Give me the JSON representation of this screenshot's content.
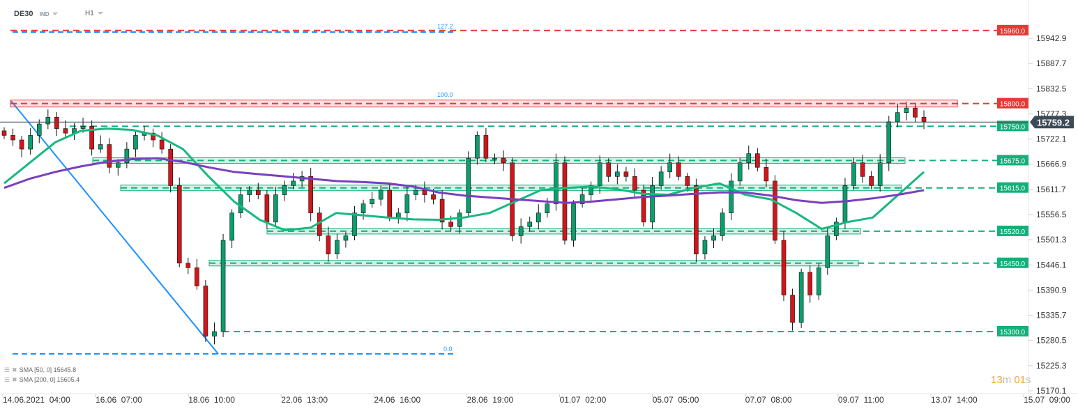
{
  "header": {
    "symbol": "DE30",
    "type": "IND",
    "timeframe": "H1"
  },
  "legend": [
    {
      "label": "SMA [50, 0] 15645.8"
    },
    {
      "label": "SMA [200, 0] 15605.4"
    }
  ],
  "timer": {
    "minutes": "13",
    "m": "m",
    "seconds": "01",
    "s": "s"
  },
  "colors": {
    "up": "#0a9e6e",
    "down": "#d0161b",
    "sma50": "#18b87f",
    "sma200": "#7a3fbf",
    "fib": "#1e90ff",
    "resistance": "#e53935",
    "support": "#14b07a",
    "current": "#3d4b58"
  },
  "chart_data": {
    "type": "candlestick",
    "instrument": "DE30",
    "timeframe": "H1",
    "ylim": [
      15150,
      15985
    ],
    "y_ticks": [
      15942.9,
      15887.7,
      15832.5,
      15777.3,
      15722.1,
      15666.9,
      15611.7,
      15556.5,
      15501.3,
      15446.1,
      15390.9,
      15335.7,
      15280.5,
      15225.3,
      15170.1
    ],
    "x_ticks": [
      "14.06.2021  04:00",
      "16.06  07:00",
      "18.06  10:00",
      "22.06  13:00",
      "24.06  16:00",
      "28.06  19:00",
      "01.07  02:00",
      "05.07  05:00",
      "07.07  08:00",
      "09.07  11:00",
      "13.07  14:00",
      "15.07  09:00"
    ],
    "closes": [
      15730,
      15720,
      15700,
      15730,
      15755,
      15770,
      15745,
      15735,
      15745,
      15750,
      15700,
      15710,
      15660,
      15670,
      15700,
      15730,
      15735,
      15720,
      15700,
      15620,
      15450,
      15440,
      15400,
      15290,
      15300,
      15500,
      15560,
      15600,
      15610,
      15600,
      15540,
      15600,
      15620,
      15630,
      15640,
      15560,
      15510,
      15470,
      15500,
      15510,
      15560,
      15580,
      15590,
      15610,
      15550,
      15560,
      15600,
      15610,
      15600,
      15590,
      15540,
      15530,
      15560,
      15680,
      15730,
      15680,
      15680,
      15670,
      15510,
      15530,
      15540,
      15560,
      15580,
      15670,
      15500,
      15580,
      15600,
      15620,
      15670,
      15640,
      15650,
      15640,
      15610,
      15540,
      15620,
      15650,
      15670,
      15640,
      15620,
      15470,
      15500,
      15510,
      15560,
      15630,
      15670,
      15690,
      15660,
      15630,
      15500,
      15380,
      15320,
      15430,
      15380,
      15440,
      15510,
      15540,
      15620,
      15670,
      15640,
      15620,
      15670,
      15760,
      15780,
      15790,
      15770,
      15760
    ],
    "series": [
      {
        "name": "SMA [50, 0]",
        "last": 15645.8,
        "values": [
          15625,
          15670,
          15715,
          15740,
          15745,
          15742,
          15730,
          15700,
          15640,
          15585,
          15545,
          15522,
          15528,
          15560,
          15555,
          15550,
          15546,
          15545,
          15550,
          15560,
          15585,
          15610,
          15615,
          15618,
          15612,
          15602,
          15600,
          15615,
          15625,
          15600,
          15590,
          15560,
          15525,
          15540,
          15550,
          15600,
          15650
        ]
      },
      {
        "name": "SMA [200, 0]",
        "last": 15605.4,
        "values": [
          15615,
          15635,
          15650,
          15662,
          15672,
          15678,
          15680,
          15672,
          15660,
          15650,
          15645,
          15640,
          15635,
          15630,
          15628,
          15625,
          15618,
          15605,
          15598,
          15594,
          15590,
          15586,
          15582,
          15585,
          15590,
          15595,
          15598,
          15602,
          15605,
          15605,
          15598,
          15588,
          15582,
          15586,
          15592,
          15600,
          15610
        ]
      }
    ],
    "levels": [
      {
        "value": 15960.0,
        "label": "15960.0",
        "kind": "resistance"
      },
      {
        "value": 15800.0,
        "label": "15800.0",
        "kind": "resistance"
      },
      {
        "value": 15750.0,
        "label": "15750.0",
        "kind": "support"
      },
      {
        "value": 15675.0,
        "label": "15675.0",
        "kind": "support"
      },
      {
        "value": 15615.0,
        "label": "15615.0",
        "kind": "support"
      },
      {
        "value": 15520.0,
        "label": "15520.0",
        "kind": "support"
      },
      {
        "value": 15450.0,
        "label": "15450.0",
        "kind": "support"
      },
      {
        "value": 15300.0,
        "label": "15300.0",
        "kind": "support"
      }
    ],
    "current_price": {
      "value": 15759.2,
      "label": "15759.2"
    },
    "fibonacci": [
      {
        "label": "127.2",
        "value": 15960
      },
      {
        "label": "100.0",
        "value": 15800
      },
      {
        "label": "0.0",
        "value": 15255
      }
    ]
  }
}
